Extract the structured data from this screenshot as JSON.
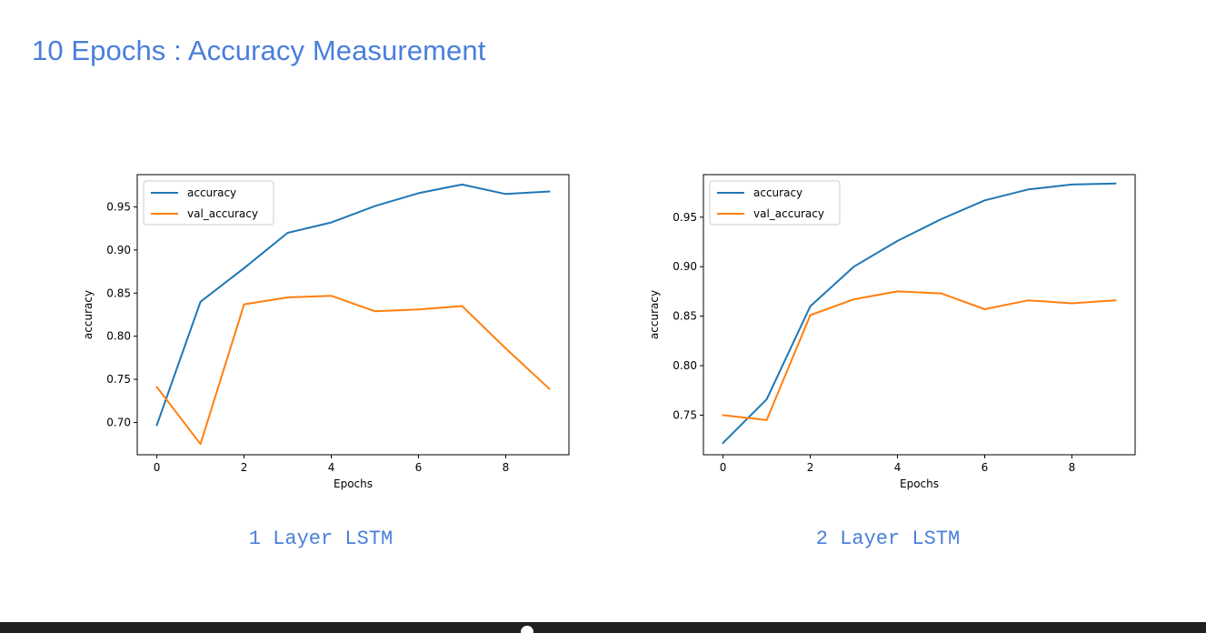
{
  "slide": {
    "title": "10 Epochs : Accuracy Measurement"
  },
  "chart_data": [
    {
      "type": "line",
      "caption": "1 Layer LSTM",
      "xlabel": "Epochs",
      "ylabel": "accuracy",
      "x": [
        0,
        1,
        2,
        3,
        4,
        5,
        6,
        7,
        8,
        9
      ],
      "xlim": [
        -0.45,
        9.45
      ],
      "ylim": [
        0.6625,
        0.9875
      ],
      "xticks": [
        0,
        2,
        4,
        6,
        8
      ],
      "yticks": [
        0.7,
        0.75,
        0.8,
        0.85,
        0.9,
        0.95
      ],
      "legend_position": "upper-left",
      "series": [
        {
          "name": "accuracy",
          "color": "#1f77b4",
          "values": [
            0.697,
            0.84,
            0.879,
            0.92,
            0.932,
            0.951,
            0.966,
            0.976,
            0.965,
            0.968
          ]
        },
        {
          "name": "val_accuracy",
          "color": "#ff7f0e",
          "values": [
            0.741,
            0.675,
            0.837,
            0.845,
            0.847,
            0.829,
            0.831,
            0.835,
            0.786,
            0.739
          ]
        }
      ]
    },
    {
      "type": "line",
      "caption": "2 Layer LSTM",
      "xlabel": "Epochs",
      "ylabel": "accuracy",
      "x": [
        0,
        1,
        2,
        3,
        4,
        5,
        6,
        7,
        8,
        9
      ],
      "xlim": [
        -0.45,
        9.45
      ],
      "ylim": [
        0.71,
        0.993
      ],
      "xticks": [
        0,
        2,
        4,
        6,
        8
      ],
      "yticks": [
        0.75,
        0.8,
        0.85,
        0.9,
        0.95
      ],
      "legend_position": "upper-left",
      "series": [
        {
          "name": "accuracy",
          "color": "#1f77b4",
          "values": [
            0.722,
            0.766,
            0.86,
            0.9,
            0.926,
            0.948,
            0.967,
            0.978,
            0.983,
            0.984
          ]
        },
        {
          "name": "val_accuracy",
          "color": "#ff7f0e",
          "values": [
            0.75,
            0.745,
            0.851,
            0.867,
            0.875,
            0.873,
            0.857,
            0.866,
            0.863,
            0.866
          ]
        }
      ]
    }
  ]
}
